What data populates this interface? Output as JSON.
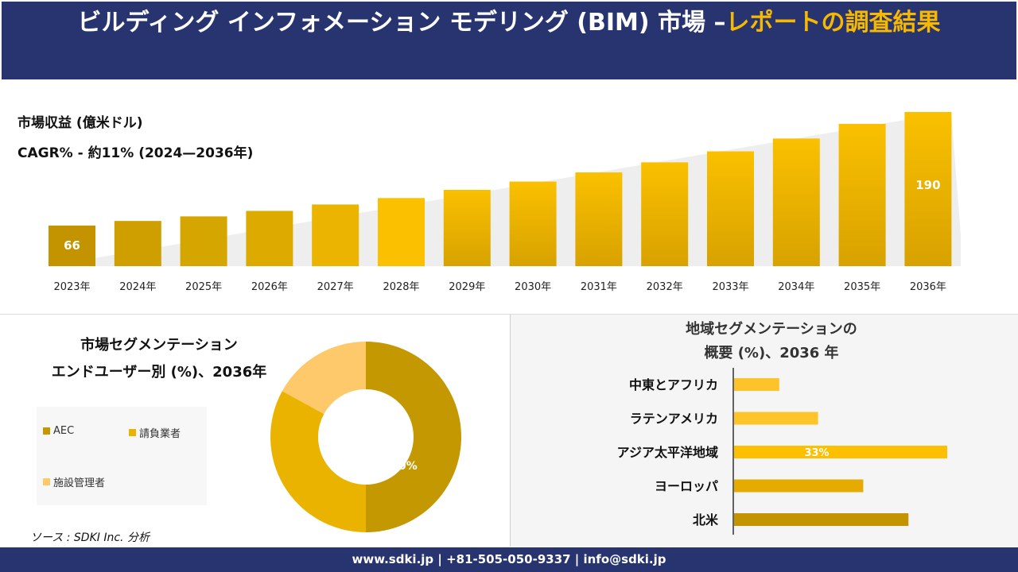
{
  "header": {
    "title_white": "ビルディング インフォメーション モデリング (BIM) 市場 –",
    "title_yellow": "レポートの調査結果"
  },
  "main": {
    "label_revenue": "市場収益 (億米ドル)",
    "label_cagr": "CAGR% - 約11% (2024—2036年)"
  },
  "chart_data": [
    {
      "type": "bar",
      "categories": [
        "2023年",
        "2024年",
        "2025年",
        "2026年",
        "2027年",
        "2028年",
        "2029年",
        "2030年",
        "2031年",
        "2032年",
        "2033年",
        "2034年",
        "2035年",
        "2036年"
      ],
      "values": [
        66,
        71,
        76,
        82,
        89,
        96,
        105,
        114,
        124,
        135,
        147,
        161,
        177,
        190
      ],
      "data_labels": {
        "0": "66",
        "13": "190"
      },
      "ylabel": "市場収益 (億米ドル)",
      "grid": false,
      "colors": [
        "#c39400",
        "#cf9f00",
        "#d6a600",
        "#ddab00",
        "#eab400",
        "#fbc000",
        "#f2b800",
        "#f2b800",
        "#f2b800",
        "#f2b800",
        "#f2b800",
        "#f2b800",
        "#f2b800",
        "#f2b800"
      ]
    },
    {
      "type": "pie",
      "title": "市場セグメンテーション エンドユーザー別 (%)、2036年",
      "title_line1": "市場セグメンテーション",
      "title_line2": "エンドユーザー別 (%)、2036年",
      "labels": [
        "AEC",
        "請負業者",
        "施設管理者"
      ],
      "values": [
        50,
        33,
        17
      ],
      "colors": [
        "#c49800",
        "#eab300",
        "#fdc96a"
      ],
      "data_label": "50%",
      "legend": "left"
    },
    {
      "type": "bar",
      "orientation": "horizontal",
      "title_line1": "地域セグメンテーションの",
      "title_line2": "概要 (%)、2036 年",
      "categories": [
        "中東とアフリカ",
        "ラテンアメリカ",
        "アジア太平洋地域",
        "ヨーロッパ",
        "北米"
      ],
      "values": [
        7,
        13,
        33,
        20,
        27
      ],
      "data_label": "33%",
      "colors": [
        "#fcc42a",
        "#fdc52a",
        "#fdc000",
        "#e5ab00",
        "#c49300"
      ]
    }
  ],
  "source": "ソース : SDKI Inc. 分析",
  "footer": "www.sdki.jp | +81-505-050-9337 | info@sdki.jp"
}
